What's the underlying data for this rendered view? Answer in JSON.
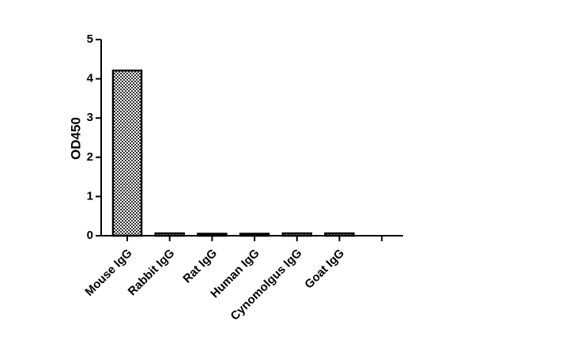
{
  "chart_data": {
    "type": "bar",
    "y_label": "OD450",
    "categories": [
      "Mouse IgG",
      "Rabbit IgG",
      "Rat IgG",
      "Human IgG",
      "Cynomolgus IgG",
      "Goat IgG",
      null
    ],
    "values": [
      4.21,
      0.06,
      0.05,
      0.05,
      0.06,
      0.06,
      null
    ],
    "color": "#000000",
    "ylim": [
      0,
      5
    ],
    "yticks": [
      0,
      1,
      2,
      3,
      4,
      5
    ],
    "grid": false
  }
}
